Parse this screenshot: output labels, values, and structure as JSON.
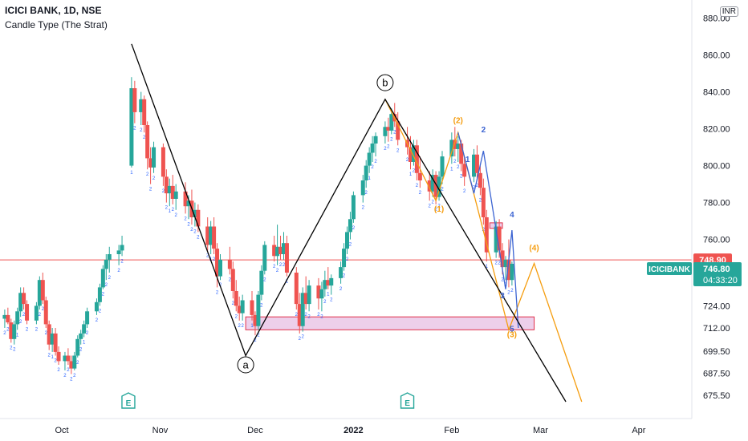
{
  "header": {
    "title": "ICICI BANK, 1D, NSE",
    "indicator": "Candle Type (The Strat)",
    "currency": "INR"
  },
  "chart_data": {
    "type": "candlestick",
    "ylim": [
      672,
      882
    ],
    "y_ticks": [
      "880.00",
      "860.00",
      "840.00",
      "820.00",
      "800.00",
      "780.00",
      "760.00",
      "724.00",
      "712.00",
      "699.50",
      "687.50",
      "675.50"
    ],
    "x_ticks": [
      {
        "label": "Oct",
        "day": 0
      },
      {
        "label": "Nov",
        "day": 31
      },
      {
        "label": "Dec",
        "day": 61
      },
      {
        "label": "2022",
        "day": 92
      },
      {
        "label": "Feb",
        "day": 123
      },
      {
        "label": "Mar",
        "day": 151
      },
      {
        "label": "Apr",
        "day": 182
      }
    ],
    "strat_type_label": "2",
    "strat_inside_label": "1",
    "colors": {
      "up": "#26a69a",
      "down": "#ef5350",
      "axis_text": "#131722",
      "orange": "#f59d0f",
      "blue": "#3c64d2",
      "zone_fill": "#e7bfe3",
      "zone_edge": "#e0304a"
    },
    "candles": [
      {
        "day": -18,
        "o": 717,
        "h": 722,
        "l": 712,
        "c": 719
      },
      {
        "day": -17,
        "o": 719,
        "h": 723,
        "l": 714,
        "c": 715
      },
      {
        "day": -16,
        "o": 715,
        "h": 717,
        "l": 704,
        "c": 706
      },
      {
        "day": -15,
        "o": 706,
        "h": 716,
        "l": 703,
        "c": 714
      },
      {
        "day": -14,
        "o": 714,
        "h": 723,
        "l": 711,
        "c": 721
      },
      {
        "day": -13,
        "o": 721,
        "h": 734,
        "l": 718,
        "c": 731
      },
      {
        "day": -12,
        "o": 731,
        "h": 734,
        "l": 722,
        "c": 725
      },
      {
        "day": -11,
        "o": 725,
        "h": 727,
        "l": 714,
        "c": 716
      },
      {
        "day": -8,
        "o": 716,
        "h": 726,
        "l": 714,
        "c": 724
      },
      {
        "day": -7,
        "o": 724,
        "h": 740,
        "l": 722,
        "c": 738
      },
      {
        "day": -6,
        "o": 738,
        "h": 742,
        "l": 725,
        "c": 727
      },
      {
        "day": -5,
        "o": 727,
        "h": 729,
        "l": 712,
        "c": 714
      },
      {
        "day": -4,
        "o": 714,
        "h": 716,
        "l": 700,
        "c": 703
      },
      {
        "day": -3,
        "o": 703,
        "h": 712,
        "l": 699,
        "c": 709
      },
      {
        "day": -2,
        "o": 709,
        "h": 712,
        "l": 697,
        "c": 699
      },
      {
        "day": -1,
        "o": 699,
        "h": 702,
        "l": 692,
        "c": 694
      },
      {
        "day": 1,
        "o": 694,
        "h": 699,
        "l": 689,
        "c": 697
      },
      {
        "day": 2,
        "o": 697,
        "h": 701,
        "l": 692,
        "c": 694
      },
      {
        "day": 3,
        "o": 694,
        "h": 697,
        "l": 687,
        "c": 690
      },
      {
        "day": 4,
        "o": 690,
        "h": 699,
        "l": 689,
        "c": 697
      },
      {
        "day": 5,
        "o": 697,
        "h": 708,
        "l": 696,
        "c": 706
      },
      {
        "day": 6,
        "o": 706,
        "h": 711,
        "l": 703,
        "c": 709
      },
      {
        "day": 7,
        "o": 709,
        "h": 716,
        "l": 707,
        "c": 714
      },
      {
        "day": 8,
        "o": 714,
        "h": 723,
        "l": 712,
        "c": 721
      },
      {
        "day": 11,
        "o": 721,
        "h": 728,
        "l": 719,
        "c": 726
      },
      {
        "day": 12,
        "o": 726,
        "h": 736,
        "l": 724,
        "c": 734
      },
      {
        "day": 13,
        "o": 734,
        "h": 746,
        "l": 733,
        "c": 744
      },
      {
        "day": 14,
        "o": 744,
        "h": 752,
        "l": 738,
        "c": 749
      },
      {
        "day": 15,
        "o": 749,
        "h": 756,
        "l": 742,
        "c": 752
      },
      {
        "day": 18,
        "o": 752,
        "h": 757,
        "l": 746,
        "c": 754
      },
      {
        "day": 19,
        "o": 754,
        "h": 762,
        "l": 751,
        "c": 757
      },
      {
        "day": 22,
        "o": 800,
        "h": 848,
        "l": 799,
        "c": 842
      },
      {
        "day": 23,
        "o": 842,
        "h": 846,
        "l": 823,
        "c": 829
      },
      {
        "day": 25,
        "o": 829,
        "h": 840,
        "l": 822,
        "c": 836
      },
      {
        "day": 26,
        "o": 836,
        "h": 838,
        "l": 818,
        "c": 822
      },
      {
        "day": 27,
        "o": 822,
        "h": 824,
        "l": 798,
        "c": 804
      },
      {
        "day": 28,
        "o": 804,
        "h": 810,
        "l": 790,
        "c": 799
      },
      {
        "day": 29,
        "o": 799,
        "h": 813,
        "l": 796,
        "c": 810
      },
      {
        "day": 32,
        "o": 810,
        "h": 812,
        "l": 789,
        "c": 794
      },
      {
        "day": 33,
        "o": 794,
        "h": 798,
        "l": 780,
        "c": 785
      },
      {
        "day": 34,
        "o": 785,
        "h": 793,
        "l": 778,
        "c": 789
      },
      {
        "day": 35,
        "o": 789,
        "h": 795,
        "l": 779,
        "c": 782
      },
      {
        "day": 36,
        "o": 782,
        "h": 790,
        "l": 776,
        "c": 786
      },
      {
        "day": 39,
        "o": 786,
        "h": 791,
        "l": 774,
        "c": 778
      },
      {
        "day": 40,
        "o": 778,
        "h": 784,
        "l": 771,
        "c": 781
      },
      {
        "day": 41,
        "o": 781,
        "h": 787,
        "l": 768,
        "c": 772
      },
      {
        "day": 42,
        "o": 772,
        "h": 780,
        "l": 767,
        "c": 776
      },
      {
        "day": 43,
        "o": 776,
        "h": 779,
        "l": 764,
        "c": 767
      },
      {
        "day": 46,
        "o": 767,
        "h": 772,
        "l": 754,
        "c": 757
      },
      {
        "day": 47,
        "o": 757,
        "h": 770,
        "l": 752,
        "c": 767
      },
      {
        "day": 48,
        "o": 767,
        "h": 772,
        "l": 752,
        "c": 755
      },
      {
        "day": 49,
        "o": 755,
        "h": 758,
        "l": 734,
        "c": 740
      },
      {
        "day": 50,
        "o": 740,
        "h": 752,
        "l": 738,
        "c": 749
      },
      {
        "day": 53,
        "o": 749,
        "h": 756,
        "l": 741,
        "c": 744
      },
      {
        "day": 54,
        "o": 744,
        "h": 748,
        "l": 728,
        "c": 732
      },
      {
        "day": 55,
        "o": 732,
        "h": 738,
        "l": 721,
        "c": 724
      },
      {
        "day": 56,
        "o": 724,
        "h": 729,
        "l": 716,
        "c": 720
      },
      {
        "day": 57,
        "o": 720,
        "h": 730,
        "l": 716,
        "c": 727
      },
      {
        "day": 60,
        "o": 727,
        "h": 732,
        "l": 716,
        "c": 719
      },
      {
        "day": 61,
        "o": 719,
        "h": 721,
        "l": 708,
        "c": 713
      },
      {
        "day": 62,
        "o": 713,
        "h": 732,
        "l": 711,
        "c": 730
      },
      {
        "day": 63,
        "o": 730,
        "h": 746,
        "l": 727,
        "c": 743
      },
      {
        "day": 64,
        "o": 743,
        "h": 759,
        "l": 741,
        "c": 757
      },
      {
        "day": 67,
        "o": 757,
        "h": 762,
        "l": 748,
        "c": 751
      },
      {
        "day": 68,
        "o": 751,
        "h": 768,
        "l": 746,
        "c": 756
      },
      {
        "day": 69,
        "o": 756,
        "h": 762,
        "l": 749,
        "c": 752
      },
      {
        "day": 70,
        "o": 752,
        "h": 764,
        "l": 749,
        "c": 758
      },
      {
        "day": 71,
        "o": 758,
        "h": 762,
        "l": 740,
        "c": 742
      },
      {
        "day": 74,
        "o": 742,
        "h": 745,
        "l": 722,
        "c": 725
      },
      {
        "day": 75,
        "o": 725,
        "h": 731,
        "l": 709,
        "c": 713
      },
      {
        "day": 76,
        "o": 713,
        "h": 734,
        "l": 710,
        "c": 731
      },
      {
        "day": 77,
        "o": 731,
        "h": 740,
        "l": 722,
        "c": 725
      },
      {
        "day": 78,
        "o": 725,
        "h": 738,
        "l": 721,
        "c": 735
      },
      {
        "day": 81,
        "o": 735,
        "h": 739,
        "l": 722,
        "c": 728
      },
      {
        "day": 82,
        "o": 728,
        "h": 737,
        "l": 721,
        "c": 733
      },
      {
        "day": 83,
        "o": 733,
        "h": 743,
        "l": 729,
        "c": 738
      },
      {
        "day": 84,
        "o": 738,
        "h": 745,
        "l": 733,
        "c": 735
      },
      {
        "day": 85,
        "o": 735,
        "h": 741,
        "l": 730,
        "c": 739
      },
      {
        "day": 88,
        "o": 739,
        "h": 748,
        "l": 736,
        "c": 745
      },
      {
        "day": 89,
        "o": 745,
        "h": 758,
        "l": 743,
        "c": 755
      },
      {
        "day": 90,
        "o": 755,
        "h": 767,
        "l": 752,
        "c": 764
      },
      {
        "day": 91,
        "o": 764,
        "h": 775,
        "l": 760,
        "c": 771
      },
      {
        "day": 92,
        "o": 771,
        "h": 786,
        "l": 769,
        "c": 784
      },
      {
        "day": 95,
        "o": 784,
        "h": 795,
        "l": 780,
        "c": 792
      },
      {
        "day": 96,
        "o": 792,
        "h": 803,
        "l": 788,
        "c": 800
      },
      {
        "day": 97,
        "o": 800,
        "h": 810,
        "l": 796,
        "c": 807
      },
      {
        "day": 98,
        "o": 807,
        "h": 816,
        "l": 802,
        "c": 812
      },
      {
        "day": 99,
        "o": 812,
        "h": 818,
        "l": 805,
        "c": 816
      },
      {
        "day": 102,
        "o": 816,
        "h": 824,
        "l": 812,
        "c": 821
      },
      {
        "day": 103,
        "o": 821,
        "h": 826,
        "l": 813,
        "c": 819
      },
      {
        "day": 104,
        "o": 819,
        "h": 831,
        "l": 817,
        "c": 828
      },
      {
        "day": 105,
        "o": 828,
        "h": 834,
        "l": 821,
        "c": 824
      },
      {
        "day": 106,
        "o": 824,
        "h": 829,
        "l": 811,
        "c": 814
      },
      {
        "day": 109,
        "o": 814,
        "h": 821,
        "l": 806,
        "c": 810
      },
      {
        "day": 110,
        "o": 810,
        "h": 816,
        "l": 798,
        "c": 802
      },
      {
        "day": 111,
        "o": 802,
        "h": 814,
        "l": 800,
        "c": 811
      },
      {
        "day": 112,
        "o": 811,
        "h": 814,
        "l": 792,
        "c": 796
      },
      {
        "day": 113,
        "o": 796,
        "h": 805,
        "l": 788,
        "c": 792
      },
      {
        "day": 116,
        "o": 792,
        "h": 797,
        "l": 781,
        "c": 786
      },
      {
        "day": 117,
        "o": 786,
        "h": 798,
        "l": 783,
        "c": 795
      },
      {
        "day": 118,
        "o": 795,
        "h": 797,
        "l": 779,
        "c": 783
      },
      {
        "day": 119,
        "o": 783,
        "h": 797,
        "l": 781,
        "c": 794
      },
      {
        "day": 120,
        "o": 794,
        "h": 808,
        "l": 790,
        "c": 805
      },
      {
        "day": 123,
        "o": 805,
        "h": 818,
        "l": 801,
        "c": 814
      },
      {
        "day": 124,
        "o": 814,
        "h": 821,
        "l": 805,
        "c": 809
      },
      {
        "day": 125,
        "o": 809,
        "h": 816,
        "l": 802,
        "c": 812
      },
      {
        "day": 126,
        "o": 812,
        "h": 814,
        "l": 797,
        "c": 801
      },
      {
        "day": 127,
        "o": 801,
        "h": 805,
        "l": 789,
        "c": 794
      },
      {
        "day": 130,
        "o": 794,
        "h": 809,
        "l": 791,
        "c": 806
      },
      {
        "day": 131,
        "o": 806,
        "h": 811,
        "l": 792,
        "c": 796
      },
      {
        "day": 132,
        "o": 796,
        "h": 800,
        "l": 784,
        "c": 788
      },
      {
        "day": 133,
        "o": 788,
        "h": 793,
        "l": 768,
        "c": 772
      },
      {
        "day": 134,
        "o": 772,
        "h": 776,
        "l": 748,
        "c": 753
      },
      {
        "day": 137,
        "o": 753,
        "h": 770,
        "l": 750,
        "c": 767
      },
      {
        "day": 138,
        "o": 767,
        "h": 771,
        "l": 750,
        "c": 754
      },
      {
        "day": 139,
        "o": 754,
        "h": 758,
        "l": 741,
        "c": 745
      },
      {
        "day": 140,
        "o": 745,
        "h": 751,
        "l": 738,
        "c": 749
      },
      {
        "day": 141,
        "o": 749,
        "h": 760,
        "l": 734,
        "c": 738
      },
      {
        "day": 142,
        "o": 738,
        "h": 748,
        "l": 735,
        "c": 746.8
      }
    ],
    "current_price": {
      "value": 746.8,
      "label": "746.80",
      "symbol": "ICICIBANK",
      "countdown": "04:33:20"
    },
    "previous_close": {
      "value": 748.9,
      "label": "748.90"
    },
    "zones": [
      {
        "day_from": 58,
        "day_to": 149,
        "top": 718,
        "bottom": 711
      },
      {
        "day_from": 135,
        "day_to": 139,
        "top": 769,
        "bottom": 766
      }
    ],
    "wave_abc_black": [
      {
        "day": 22,
        "price": 866
      },
      {
        "day": 58,
        "price": 697
      },
      {
        "day": 102,
        "price": 836
      },
      {
        "day": 159,
        "price": 672
      }
    ],
    "wave_orange": [
      {
        "day": 102,
        "price": 836
      },
      {
        "day": 118,
        "price": 781
      },
      {
        "day": 125,
        "price": 818
      },
      {
        "day": 141,
        "price": 711
      },
      {
        "day": 149,
        "price": 747
      },
      {
        "day": 164,
        "price": 672
      }
    ],
    "wave_blue": [
      {
        "day": 125,
        "price": 818
      },
      {
        "day": 130,
        "price": 785
      },
      {
        "day": 133,
        "price": 808
      },
      {
        "day": 140,
        "price": 733
      },
      {
        "day": 142,
        "price": 765
      },
      {
        "day": 144,
        "price": 712
      }
    ],
    "wave_labels": [
      {
        "text": "b",
        "day": 102,
        "price": 845,
        "style": "circle"
      },
      {
        "text": "a",
        "day": 58,
        "price": 692,
        "style": "circle"
      },
      {
        "text": "(2)",
        "day": 125,
        "price": 823,
        "style": "orange"
      },
      {
        "text": "(1)",
        "day": 119,
        "price": 775,
        "style": "orange"
      },
      {
        "text": "(4)",
        "day": 149,
        "price": 754,
        "style": "orange"
      },
      {
        "text": "(3)",
        "day": 142,
        "price": 707,
        "style": "orange"
      },
      {
        "text": "2",
        "day": 133,
        "price": 818,
        "style": "blue"
      },
      {
        "text": "1",
        "day": 128,
        "price": 802,
        "style": "blue"
      },
      {
        "text": "4",
        "day": 142,
        "price": 772,
        "style": "blue"
      },
      {
        "text": "3",
        "day": 139,
        "price": 728,
        "style": "blue"
      },
      {
        "text": "5",
        "day": 142,
        "price": 710,
        "style": "blue"
      }
    ],
    "earnings_markers": [
      {
        "label": "E",
        "day": 21
      },
      {
        "label": "E",
        "day": 109
      }
    ]
  }
}
